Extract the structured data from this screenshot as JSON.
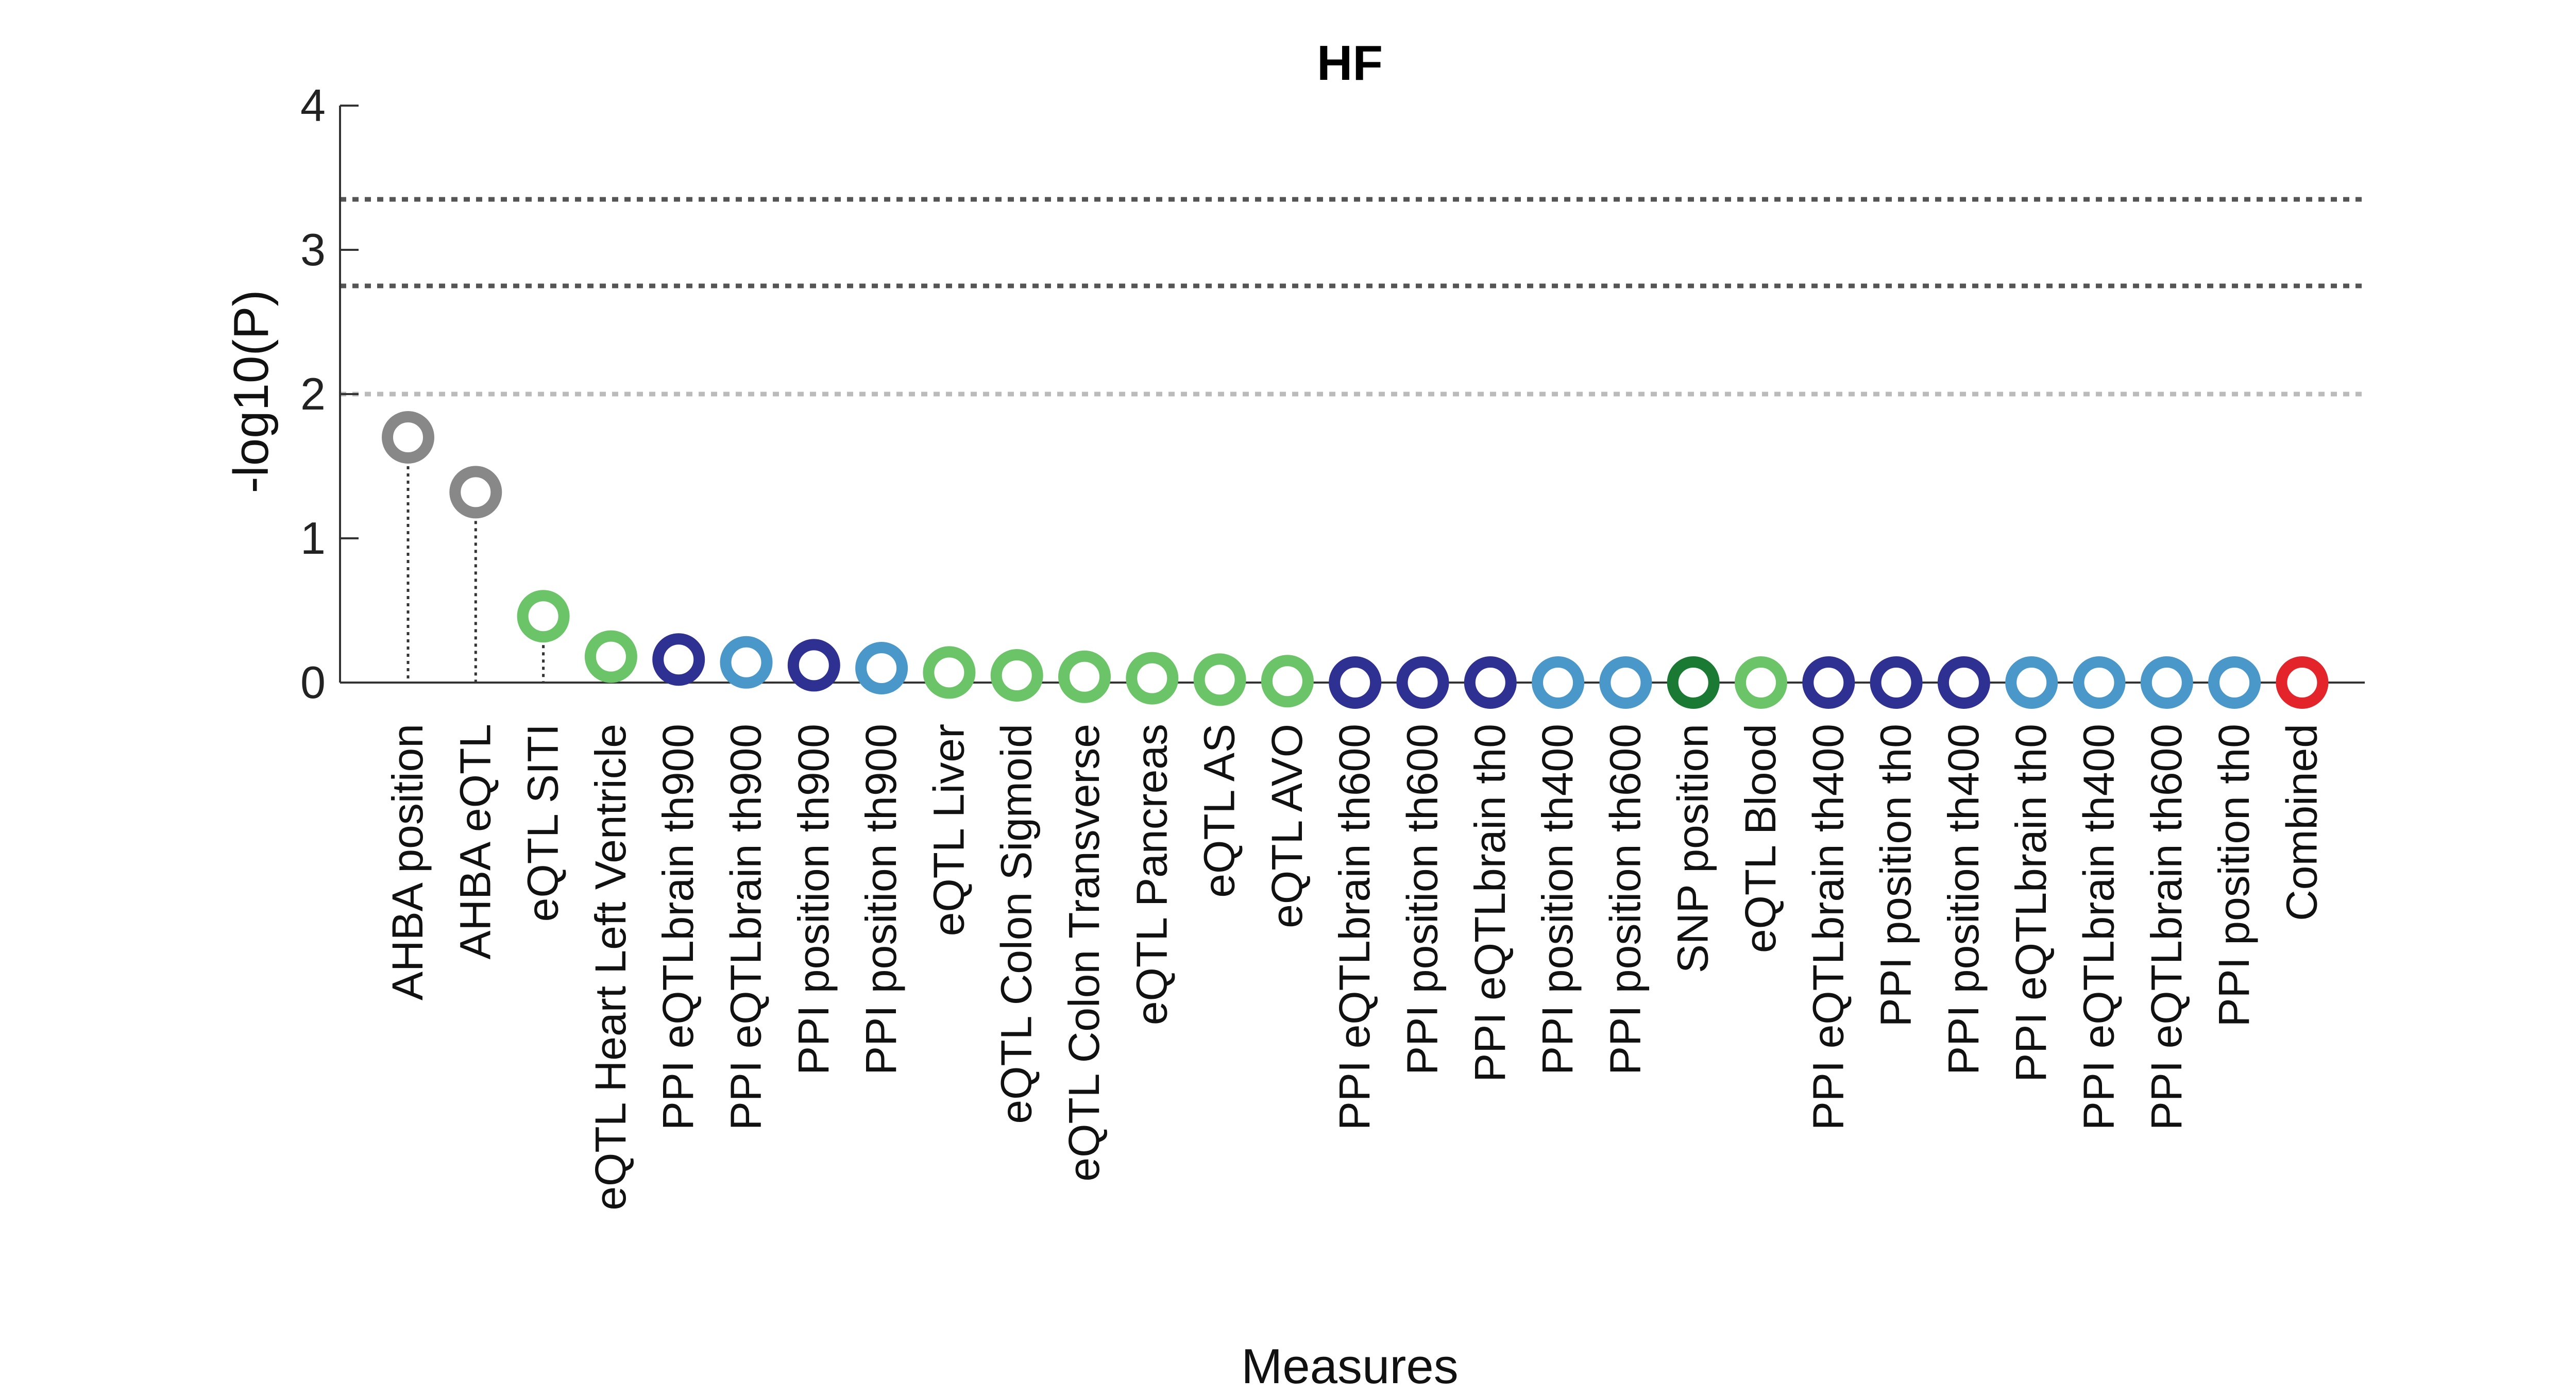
{
  "chart_data": {
    "type": "scatter",
    "title": "HF",
    "xlabel": "Measures",
    "ylabel": "-log10(P)",
    "ylim": [
      0,
      4
    ],
    "yticks": [
      0,
      1,
      2,
      3,
      4
    ],
    "grid": false,
    "threshold_lines": [
      {
        "value": 3.35,
        "color": "#555555"
      },
      {
        "value": 2.75,
        "color": "#555555"
      },
      {
        "value": 2.0,
        "color": "#bbbbbb"
      }
    ],
    "categories": [
      "AHBA position",
      "AHBA eQTL",
      "eQTL SITI",
      "eQTL Heart Left Ventricle",
      "PPI eQTLbrain th900",
      "PPI eQTLbrain th900",
      "PPI position th900",
      "PPI position th900",
      "eQTL Liver",
      "eQTL Colon Sigmoid",
      "eQTL Colon Transverse",
      "eQTL Pancreas",
      "eQTL AS",
      "eQTL AVO",
      "PPI eQTLbrain th600",
      "PPI position th600",
      "PPI eQTLbrain th0",
      "PPI position th400",
      "PPI position th600",
      "SNP position",
      "eQTL Blood",
      "PPI eQTLbrain th400",
      "PPI position th0",
      "PPI position th400",
      "PPI eQTLbrain th0",
      "PPI eQTLbrain th400",
      "PPI eQTLbrain th600",
      "PPI position th0",
      "Combined"
    ],
    "values": [
      1.7,
      1.32,
      0.46,
      0.18,
      0.16,
      0.14,
      0.12,
      0.1,
      0.07,
      0.05,
      0.04,
      0.03,
      0.02,
      0.01,
      0.0,
      0.0,
      0.0,
      0.0,
      0.0,
      0.0,
      0.0,
      0.0,
      0.0,
      0.0,
      0.0,
      0.0,
      0.0,
      0.0,
      0.0
    ],
    "colors": [
      "#888888",
      "#888888",
      "#6cc468",
      "#6cc468",
      "#2e3192",
      "#4a98c9",
      "#2e3192",
      "#4a98c9",
      "#6cc468",
      "#6cc468",
      "#6cc468",
      "#6cc468",
      "#6cc468",
      "#6cc468",
      "#2e3192",
      "#2e3192",
      "#2e3192",
      "#4a98c9",
      "#4a98c9",
      "#1a7a33",
      "#6cc468",
      "#2e3192",
      "#2e3192",
      "#2e3192",
      "#4a98c9",
      "#4a98c9",
      "#4a98c9",
      "#4a98c9",
      "#e3242b"
    ]
  }
}
